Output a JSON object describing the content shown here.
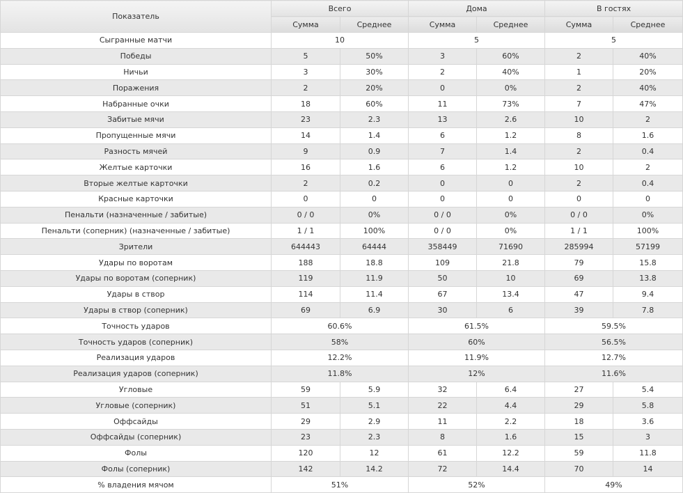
{
  "table": {
    "header": {
      "indicator": "Показатель",
      "groups": [
        "Всего",
        "Дома",
        "В гостях"
      ],
      "sub": [
        "Сумма",
        "Среднее",
        "Сумма",
        "Среднее",
        "Сумма",
        "Среднее"
      ]
    },
    "rows": [
      {
        "label": "Сыгранные матчи",
        "merged": true,
        "cells": [
          "10",
          "5",
          "5"
        ]
      },
      {
        "label": "Победы",
        "merged": false,
        "cells": [
          "5",
          "50%",
          "3",
          "60%",
          "2",
          "40%"
        ]
      },
      {
        "label": "Ничьи",
        "merged": false,
        "cells": [
          "3",
          "30%",
          "2",
          "40%",
          "1",
          "20%"
        ]
      },
      {
        "label": "Поражения",
        "merged": false,
        "cells": [
          "2",
          "20%",
          "0",
          "0%",
          "2",
          "40%"
        ]
      },
      {
        "label": "Набранные очки",
        "merged": false,
        "cells": [
          "18",
          "60%",
          "11",
          "73%",
          "7",
          "47%"
        ]
      },
      {
        "label": "Забитые мячи",
        "merged": false,
        "cells": [
          "23",
          "2.3",
          "13",
          "2.6",
          "10",
          "2"
        ]
      },
      {
        "label": "Пропущенные мячи",
        "merged": false,
        "cells": [
          "14",
          "1.4",
          "6",
          "1.2",
          "8",
          "1.6"
        ]
      },
      {
        "label": "Разность мячей",
        "merged": false,
        "cells": [
          "9",
          "0.9",
          "7",
          "1.4",
          "2",
          "0.4"
        ]
      },
      {
        "label": "Желтые карточки",
        "merged": false,
        "cells": [
          "16",
          "1.6",
          "6",
          "1.2",
          "10",
          "2"
        ]
      },
      {
        "label": "Вторые желтые карточки",
        "merged": false,
        "cells": [
          "2",
          "0.2",
          "0",
          "0",
          "2",
          "0.4"
        ]
      },
      {
        "label": "Красные карточки",
        "merged": false,
        "cells": [
          "0",
          "0",
          "0",
          "0",
          "0",
          "0"
        ]
      },
      {
        "label": "Пенальти (назначенные / забитые)",
        "merged": false,
        "cells": [
          "0 / 0",
          "0%",
          "0 / 0",
          "0%",
          "0 / 0",
          "0%"
        ]
      },
      {
        "label": "Пенальти (соперник) (назначенные / забитые)",
        "merged": false,
        "cells": [
          "1 / 1",
          "100%",
          "0 / 0",
          "0%",
          "1 / 1",
          "100%"
        ]
      },
      {
        "label": "Зрители",
        "merged": false,
        "cells": [
          "644443",
          "64444",
          "358449",
          "71690",
          "285994",
          "57199"
        ]
      },
      {
        "label": "Удары по воротам",
        "merged": false,
        "cells": [
          "188",
          "18.8",
          "109",
          "21.8",
          "79",
          "15.8"
        ]
      },
      {
        "label": "Удары по воротам (соперник)",
        "merged": false,
        "cells": [
          "119",
          "11.9",
          "50",
          "10",
          "69",
          "13.8"
        ]
      },
      {
        "label": "Удары в створ",
        "merged": false,
        "cells": [
          "114",
          "11.4",
          "67",
          "13.4",
          "47",
          "9.4"
        ]
      },
      {
        "label": "Удары в створ (соперник)",
        "merged": false,
        "cells": [
          "69",
          "6.9",
          "30",
          "6",
          "39",
          "7.8"
        ]
      },
      {
        "label": "Точность ударов",
        "merged": true,
        "cells": [
          "60.6%",
          "61.5%",
          "59.5%"
        ]
      },
      {
        "label": "Точность ударов (соперник)",
        "merged": true,
        "cells": [
          "58%",
          "60%",
          "56.5%"
        ]
      },
      {
        "label": "Реализация ударов",
        "merged": true,
        "cells": [
          "12.2%",
          "11.9%",
          "12.7%"
        ]
      },
      {
        "label": "Реализация ударов (соперник)",
        "merged": true,
        "cells": [
          "11.8%",
          "12%",
          "11.6%"
        ]
      },
      {
        "label": "Угловые",
        "merged": false,
        "cells": [
          "59",
          "5.9",
          "32",
          "6.4",
          "27",
          "5.4"
        ]
      },
      {
        "label": "Угловые (соперник)",
        "merged": false,
        "cells": [
          "51",
          "5.1",
          "22",
          "4.4",
          "29",
          "5.8"
        ]
      },
      {
        "label": "Оффсайды",
        "merged": false,
        "cells": [
          "29",
          "2.9",
          "11",
          "2.2",
          "18",
          "3.6"
        ]
      },
      {
        "label": "Оффсайды (соперник)",
        "merged": false,
        "cells": [
          "23",
          "2.3",
          "8",
          "1.6",
          "15",
          "3"
        ]
      },
      {
        "label": "Фолы",
        "merged": false,
        "cells": [
          "120",
          "12",
          "61",
          "12.2",
          "59",
          "11.8"
        ]
      },
      {
        "label": "Фолы (соперник)",
        "merged": false,
        "cells": [
          "142",
          "14.2",
          "72",
          "14.4",
          "70",
          "14"
        ]
      },
      {
        "label": "% владения мячом",
        "merged": true,
        "cells": [
          "51%",
          "52%",
          "49%"
        ]
      }
    ]
  }
}
